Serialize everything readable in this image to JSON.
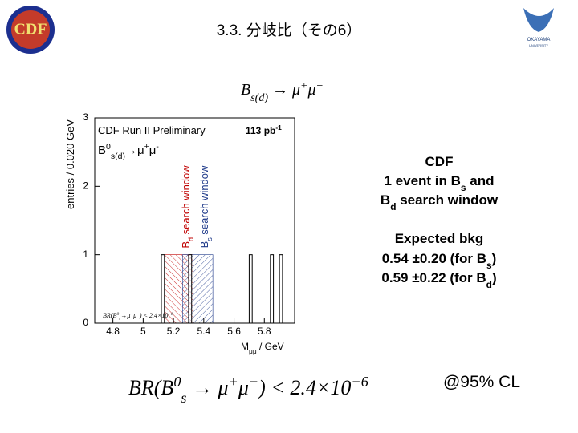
{
  "slide": {
    "title": "3.3. 分岐比（その6）",
    "logo_left": "CDF",
    "logo_right": [
      "OKAYAMA",
      "UNIVERSITY"
    ],
    "top_formula": [
      {
        "text": "B"
      },
      {
        "text": "s(d)",
        "shift": "sub"
      },
      {
        "text": " → μ"
      },
      {
        "text": "+",
        "shift": "sup"
      },
      {
        "text": "μ"
      },
      {
        "text": "−",
        "shift": "sup"
      }
    ],
    "notes": [
      [
        {
          "text": "CDF"
        }
      ],
      [
        {
          "text": "1 event in B"
        },
        {
          "text": "s",
          "shift": "sub"
        },
        {
          "text": " and"
        }
      ],
      [
        {
          "text": "B"
        },
        {
          "text": "d",
          "shift": "sub"
        },
        {
          "text": " search window"
        }
      ],
      [
        {
          "text": "Expected bkg"
        }
      ],
      [
        {
          "text": "0.54 ±0.20 (for B"
        },
        {
          "text": "s",
          "shift": "sub"
        },
        {
          "text": ")"
        }
      ],
      [
        {
          "text": "0.59 ±0.22 (for B"
        },
        {
          "text": "d",
          "shift": "sub"
        },
        {
          "text": ")"
        }
      ]
    ],
    "result": [
      {
        "text": "BR(B"
      },
      {
        "text": "0",
        "shift": "sup"
      },
      {
        "text": "s",
        "shift": "sub"
      },
      {
        "text": " → μ"
      },
      {
        "text": "+",
        "shift": "sup"
      },
      {
        "text": "μ"
      },
      {
        "text": "−",
        "shift": "sup"
      },
      {
        "text": ") < 2.4×10"
      },
      {
        "text": "−6",
        "shift": "sup"
      }
    ],
    "confidence": "@95% CL"
  },
  "chart_data": {
    "type": "histogram",
    "experiment": "CDF Run II Preliminary",
    "luminosity": [
      {
        "text": "113 pb"
      },
      {
        "text": "-1",
        "shift": "sup"
      }
    ],
    "legend": [
      {
        "text": "B"
      },
      {
        "text": "0",
        "shift": "sup"
      },
      {
        "text": "s(d)",
        "shift": "sub"
      },
      {
        "text": "→μ"
      },
      {
        "text": "+",
        "shift": "sup"
      },
      {
        "text": "μ"
      },
      {
        "text": "-",
        "shift": "sup"
      }
    ],
    "limit_label": [
      {
        "text": "BR(B"
      },
      {
        "text": "0",
        "shift": "sup"
      },
      {
        "text": "s",
        "shift": "sub"
      },
      {
        "text": "→μ"
      },
      {
        "text": "+",
        "shift": "sup"
      },
      {
        "text": "μ"
      },
      {
        "text": "−",
        "shift": "sup"
      },
      {
        "text": ") < 2.4×10"
      },
      {
        "text": "−6",
        "shift": "sup"
      }
    ],
    "x_label": [
      {
        "text": "M"
      },
      {
        "text": "μμ",
        "shift": "sub"
      },
      {
        "text": " / GeV"
      }
    ],
    "y_label": "entries / 0.020 GeV",
    "bins": [
      4.68,
      4.7,
      4.72,
      4.74,
      4.76,
      4.78,
      4.8,
      4.82,
      4.84,
      4.86,
      4.88,
      4.9,
      4.92,
      4.94,
      4.96,
      4.98,
      5.0,
      5.02,
      5.04,
      5.06,
      5.08,
      5.1,
      5.12,
      5.14,
      5.16,
      5.18,
      5.2,
      5.22,
      5.24,
      5.26,
      5.28,
      5.3,
      5.32,
      5.34,
      5.36,
      5.38,
      5.4,
      5.42,
      5.44,
      5.46,
      5.48,
      5.5,
      5.52,
      5.54,
      5.56,
      5.58,
      5.6,
      5.62,
      5.64,
      5.66,
      5.68,
      5.7,
      5.72,
      5.74,
      5.76,
      5.78,
      5.8,
      5.82,
      5.84,
      5.86,
      5.88,
      5.9,
      5.92,
      5.94,
      5.96,
      5.98,
      6.0
    ],
    "counts": [
      0,
      0,
      0,
      0,
      0,
      0,
      0,
      0,
      0,
      0,
      0,
      0,
      0,
      0,
      0,
      0,
      0,
      0,
      0,
      0,
      0,
      0,
      1,
      0,
      0,
      0,
      0,
      0,
      0,
      0,
      0,
      1,
      0,
      0,
      0,
      0,
      0,
      0,
      0,
      0,
      0,
      0,
      0,
      0,
      0,
      0,
      0,
      0,
      0,
      0,
      0,
      1,
      0,
      0,
      0,
      0,
      0,
      0,
      1,
      0,
      0,
      1,
      0,
      0,
      0,
      0
    ],
    "windows": [
      {
        "label": [
          {
            "text": "B"
          },
          {
            "text": "d",
            "shift": "sub"
          },
          {
            "text": " search window"
          }
        ],
        "range": [
          5.14,
          5.33
        ],
        "color": "#c00000"
      },
      {
        "label": [
          {
            "text": "B"
          },
          {
            "text": "s",
            "shift": "sub"
          },
          {
            "text": " search window"
          }
        ],
        "range": [
          5.26,
          5.46
        ],
        "color": "#1f3a8a"
      }
    ],
    "xlim": [
      4.68,
      6.0
    ],
    "ylim": [
      0,
      3
    ],
    "xticks": [
      4.8,
      5,
      5.2,
      5.4,
      5.6,
      5.8
    ],
    "yticks": [
      0,
      1,
      2,
      3
    ],
    "bar_color": "#ffffff"
  }
}
